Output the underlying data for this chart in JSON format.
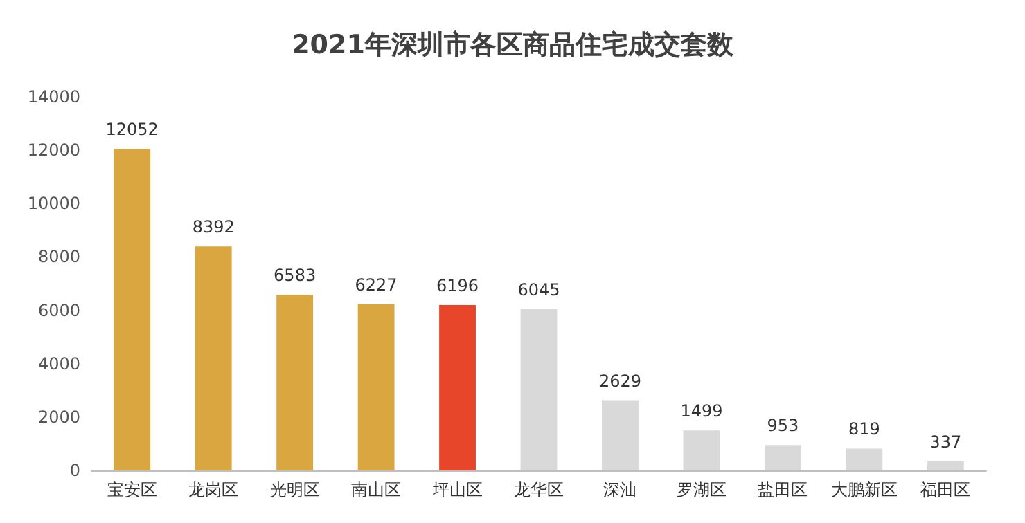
{
  "chart_data": {
    "type": "bar",
    "title": "2021年深圳市各区商品住宅成交套数",
    "categories": [
      "宝安区",
      "龙岗区",
      "光明区",
      "南山区",
      "坪山区",
      "龙华区",
      "深汕",
      "罗湖区",
      "盐田区",
      "大鹏新区",
      "福田区"
    ],
    "values": [
      12052,
      8392,
      6583,
      6227,
      6196,
      6045,
      2629,
      1499,
      953,
      819,
      337
    ],
    "colors": [
      "#d9a640",
      "#d9a640",
      "#d9a640",
      "#d9a640",
      "#e8462a",
      "#d9d9d9",
      "#d9d9d9",
      "#d9d9d9",
      "#d9d9d9",
      "#d9d9d9",
      "#d9d9d9"
    ],
    "ylim": [
      0,
      14000
    ],
    "yticks": [
      0,
      2000,
      4000,
      6000,
      8000,
      10000,
      12000,
      14000
    ],
    "grid": false,
    "data_labels": true
  }
}
